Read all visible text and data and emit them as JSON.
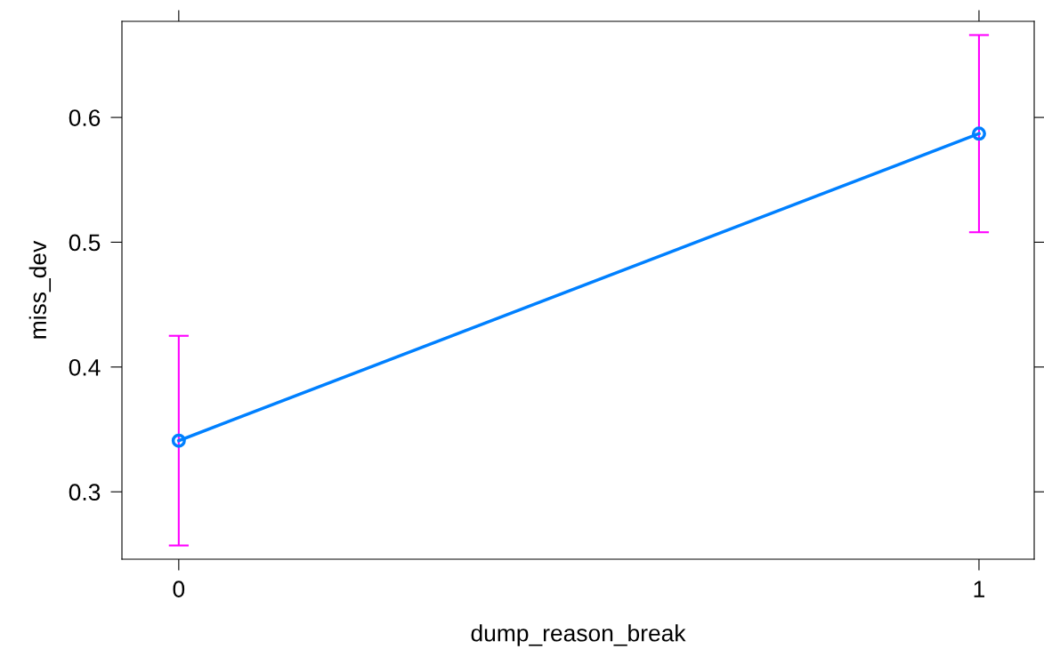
{
  "chart_data": {
    "type": "line",
    "xlabel": "dump_reason_break",
    "ylabel": "miss_dev",
    "x": [
      0,
      1
    ],
    "series": [
      {
        "color": "#0080ff",
        "values": [
          0.341,
          0.587
        ],
        "errors": [
          [
            0.257,
            0.425
          ],
          [
            0.508,
            0.666
          ]
        ]
      }
    ],
    "xlim": [
      -0.071,
      1.069
    ],
    "xticks": [
      0,
      1
    ],
    "ylim": [
      0.246,
      0.677
    ],
    "yticks": [
      0.3,
      0.4,
      0.5,
      0.6
    ],
    "marker": "circle",
    "line_style": "solid",
    "grid": false,
    "legend": false
  }
}
